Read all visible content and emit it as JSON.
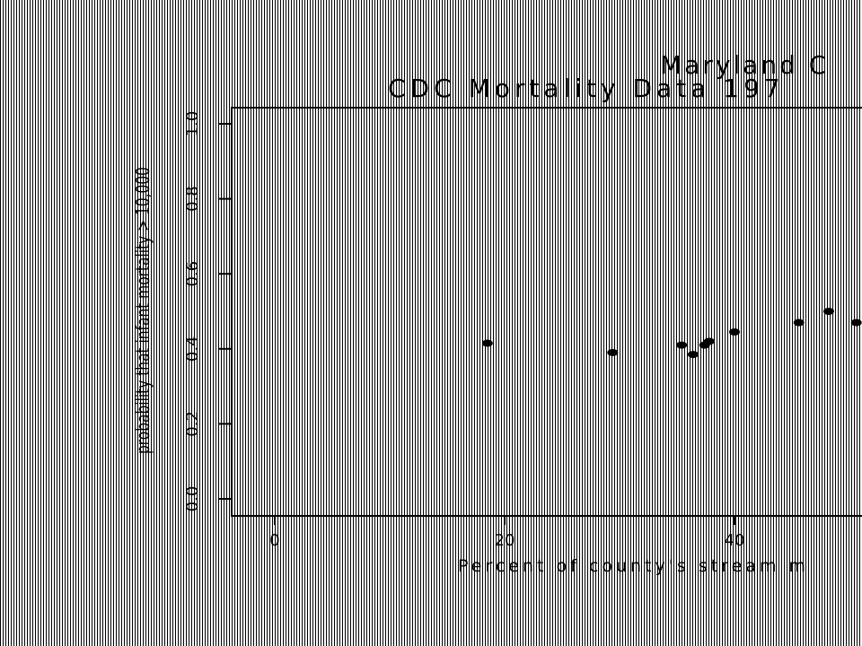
{
  "chart_data": {
    "type": "scatter",
    "title": "Maryland C",
    "subtitle": "CDC Mortality Data 197",
    "xlabel": "Percent of county's stream m",
    "ylabel": "probability that infant mortality > 10,000",
    "x_ticks": [
      "0",
      "20",
      "40"
    ],
    "y_ticks": [
      "0.0",
      "0.2",
      "0.4",
      "0.6",
      "0.8",
      "1.0"
    ],
    "xlim": [
      -4,
      51
    ],
    "ylim": [
      -0.03,
      1.03
    ],
    "grid": false,
    "points": [
      {
        "x": 18.5,
        "y": 0.415
      },
      {
        "x": 29.4,
        "y": 0.39
      },
      {
        "x": 35.4,
        "y": 0.41
      },
      {
        "x": 36.4,
        "y": 0.385
      },
      {
        "x": 37.4,
        "y": 0.41
      },
      {
        "x": 37.8,
        "y": 0.42
      },
      {
        "x": 40.0,
        "y": 0.445
      },
      {
        "x": 45.6,
        "y": 0.47
      },
      {
        "x": 48.2,
        "y": 0.5
      },
      {
        "x": 50.6,
        "y": 0.47
      }
    ]
  }
}
